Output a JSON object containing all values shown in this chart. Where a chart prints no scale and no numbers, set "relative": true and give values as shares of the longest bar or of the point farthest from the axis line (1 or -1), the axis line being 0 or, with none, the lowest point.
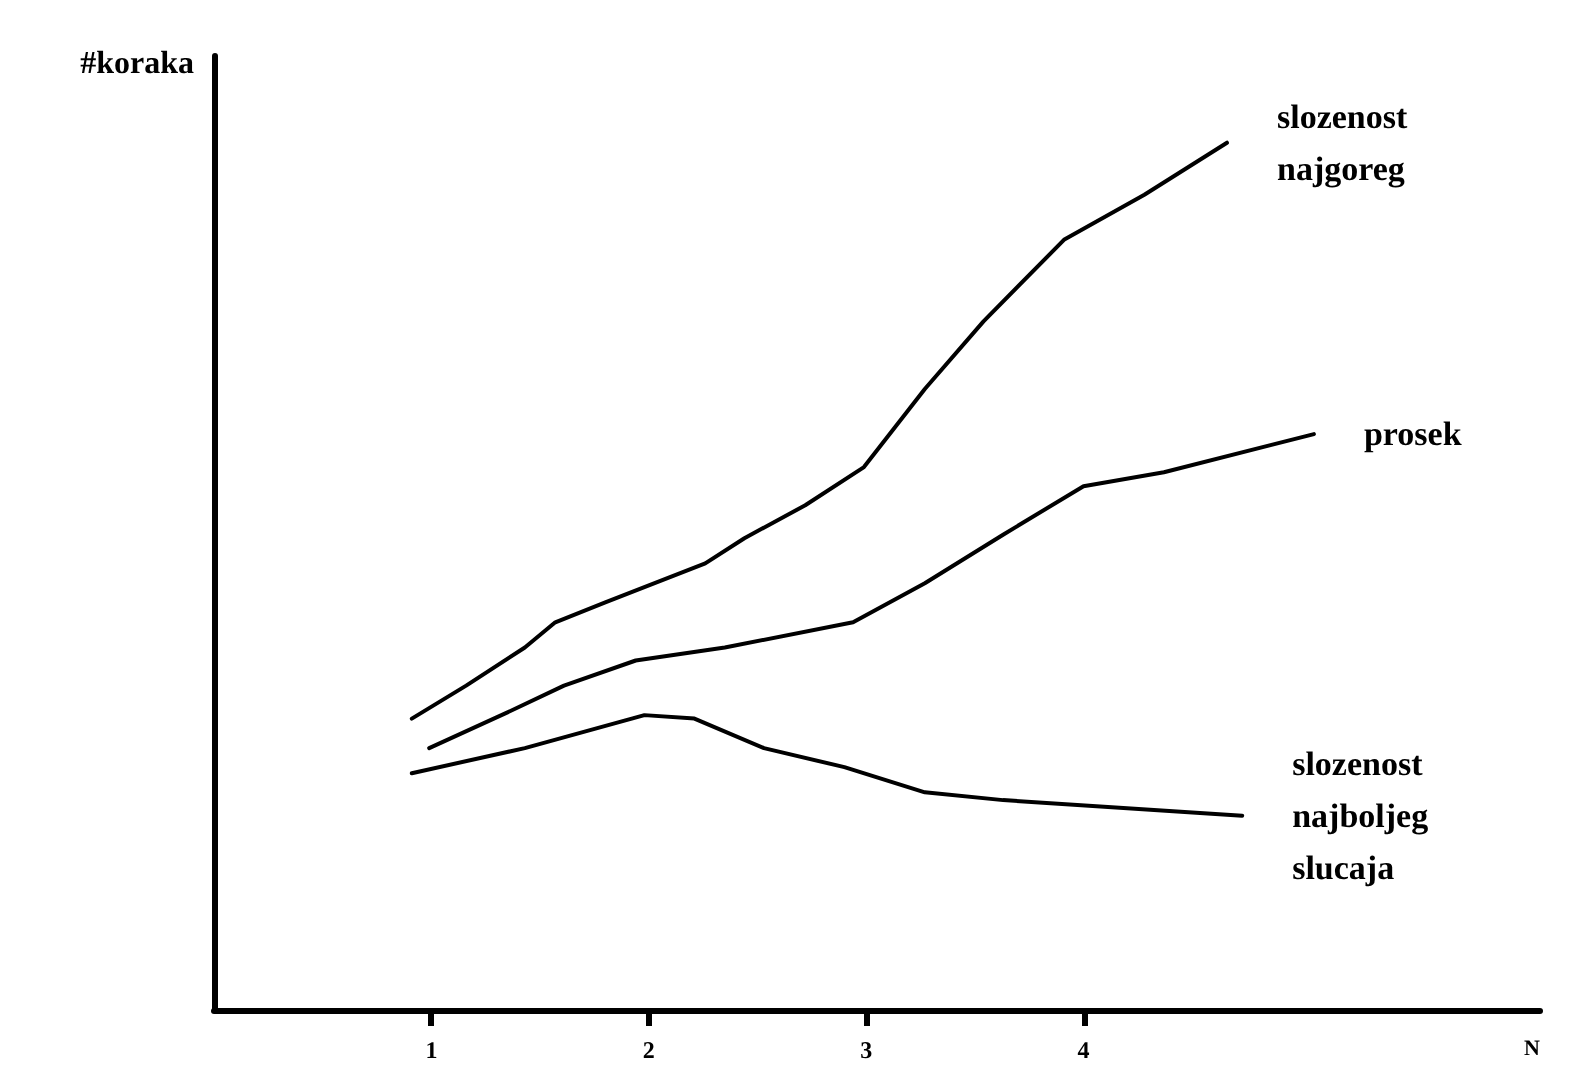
{
  "chart_data": {
    "type": "line",
    "relative": true,
    "xlabel": "N",
    "ylabel": "#koraka",
    "xlim": [
      0,
      6.1
    ],
    "xticks": [
      1,
      2,
      3,
      4
    ],
    "tick_labels": "x",
    "grid": false,
    "marker": "none",
    "line_style": "solid",
    "series": [
      {
        "name": "slozenost najgoreg",
        "color": "#000000",
        "x": [
          0.91,
          1.16,
          1.43,
          1.57,
          1.8,
          2.26,
          2.44,
          2.72,
          2.99,
          3.27,
          3.54,
          3.91,
          4.28,
          4.66
        ],
        "values": [
          0.336,
          0.374,
          0.418,
          0.447,
          0.47,
          0.515,
          0.544,
          0.582,
          0.626,
          0.716,
          0.794,
          0.888,
          0.94,
          1
        ]
      },
      {
        "name": "prosek",
        "color": "#000000",
        "x": [
          0.99,
          1.34,
          1.61,
          1.94,
          2.35,
          2.94,
          3.27,
          3.63,
          4.0,
          4.37,
          5.06
        ],
        "values": [
          0.302,
          0.342,
          0.374,
          0.403,
          0.418,
          0.447,
          0.492,
          0.548,
          0.604,
          0.62,
          0.664
        ]
      },
      {
        "name": "slozenost najboljeg slucaja",
        "color": "#000000",
        "x": [
          0.91,
          1.43,
          1.98,
          2.21,
          2.53,
          2.9,
          3.27,
          3.63,
          4.73
        ],
        "values": [
          0.273,
          0.302,
          0.34,
          0.336,
          0.302,
          0.28,
          0.251,
          0.242,
          0.224
        ]
      }
    ]
  }
}
